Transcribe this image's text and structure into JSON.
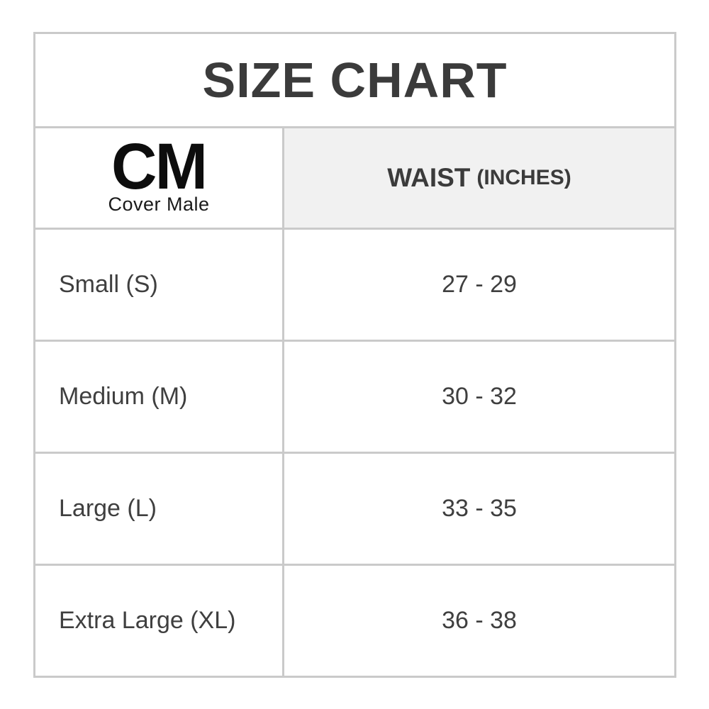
{
  "title": "SIZE CHART",
  "brand": {
    "initials": "CM",
    "name": "Cover Male"
  },
  "header": {
    "waist_label": "WAIST",
    "waist_unit": "(INCHES)"
  },
  "rows": [
    {
      "size": "Small (S)",
      "waist": "27 - 29"
    },
    {
      "size": "Medium (M)",
      "waist": "30 - 32"
    },
    {
      "size": "Large (L)",
      "waist": "33 - 35"
    },
    {
      "size": "Extra Large (XL)",
      "waist": "36 - 38"
    }
  ],
  "colors": {
    "border": "#cacaca",
    "header_bg": "#f1f1f1",
    "text": "#3b3b3b",
    "logo": "#0d0d0d",
    "background": "#ffffff"
  },
  "chart_data": {
    "type": "table",
    "title": "SIZE CHART",
    "columns": [
      "Size (CM Cover Male logo)",
      "WAIST (INCHES)"
    ],
    "rows": [
      [
        "Small (S)",
        "27 - 29"
      ],
      [
        "Medium (M)",
        "30 - 32"
      ],
      [
        "Large (L)",
        "33 - 35"
      ],
      [
        "Extra Large (XL)",
        "36 - 38"
      ]
    ]
  }
}
